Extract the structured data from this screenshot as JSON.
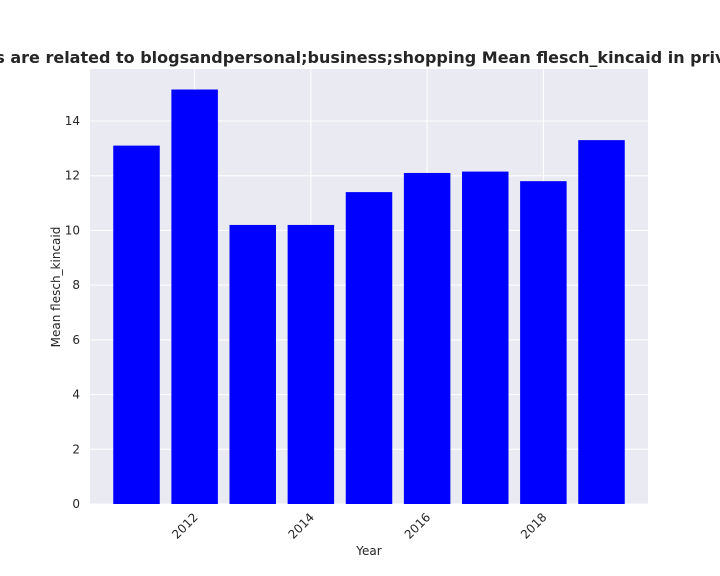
{
  "chart_data": {
    "type": "bar",
    "title": "Categories are related to blogsandpersonal;business;shopping Mean flesch_kincaid in privacy policies",
    "xlabel": "Year",
    "ylabel": "Mean flesch_kincaid",
    "x": [
      2011,
      2012,
      2013,
      2014,
      2015,
      2016,
      2017,
      2018,
      2019
    ],
    "values": [
      13.1,
      15.15,
      10.2,
      10.2,
      11.4,
      12.1,
      12.15,
      11.8,
      13.3
    ],
    "xticks": [
      2012,
      2014,
      2016,
      2018
    ],
    "xtick_labels": [
      "2012",
      "2014",
      "2016",
      "2018"
    ],
    "yticks": [
      0,
      2,
      4,
      6,
      8,
      10,
      12,
      14
    ],
    "ytick_labels": [
      "0",
      "2",
      "4",
      "6",
      "8",
      "10",
      "12",
      "14"
    ],
    "ylim": [
      0,
      15.9
    ],
    "xlim": [
      2010.2,
      2019.8
    ],
    "bar_color": "#0000ff",
    "plot_background": "#eaeaf2",
    "grid": true,
    "grid_color": "#ffffff"
  }
}
